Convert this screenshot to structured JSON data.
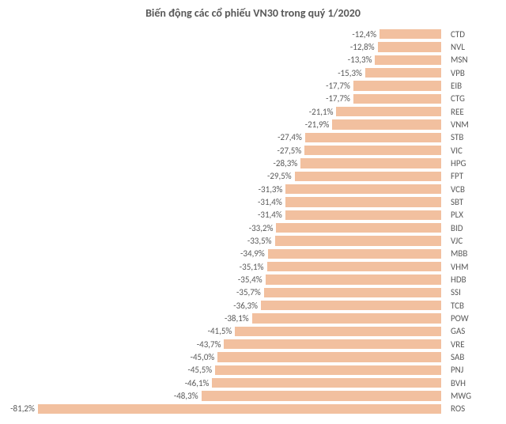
{
  "chart": {
    "type": "bar-horizontal",
    "title": "Biến động các cổ phiếu VN30 trong quý 1/2020",
    "title_fontsize": 14,
    "title_color": "#595959",
    "background_color": "#ffffff",
    "bar_color": "#f2c09f",
    "value_label_color": "#595959",
    "ticker_label_color": "#595959",
    "label_fontsize": 11,
    "xlim_min": -85,
    "xlim_max": 0,
    "bar_gap_ratio": 0.25,
    "rows": [
      {
        "ticker": "CTD",
        "value": -12.4,
        "label": "-12,4%"
      },
      {
        "ticker": "NVL",
        "value": -12.8,
        "label": "-12,8%"
      },
      {
        "ticker": "MSN",
        "value": -13.3,
        "label": "-13,3%"
      },
      {
        "ticker": "VPB",
        "value": -15.3,
        "label": "-15,3%"
      },
      {
        "ticker": "EIB",
        "value": -17.7,
        "label": "-17,7%"
      },
      {
        "ticker": "CTG",
        "value": -17.7,
        "label": "-17,7%"
      },
      {
        "ticker": "REE",
        "value": -21.1,
        "label": "-21,1%"
      },
      {
        "ticker": "VNM",
        "value": -21.9,
        "label": "-21,9%"
      },
      {
        "ticker": "STB",
        "value": -27.4,
        "label": "-27,4%"
      },
      {
        "ticker": "VIC",
        "value": -27.5,
        "label": "-27,5%"
      },
      {
        "ticker": "HPG",
        "value": -28.3,
        "label": "-28,3%"
      },
      {
        "ticker": "FPT",
        "value": -29.5,
        "label": "-29,5%"
      },
      {
        "ticker": "VCB",
        "value": -31.3,
        "label": "-31,3%"
      },
      {
        "ticker": "SBT",
        "value": -31.4,
        "label": "-31,4%"
      },
      {
        "ticker": "PLX",
        "value": -31.4,
        "label": "-31,4%"
      },
      {
        "ticker": "BID",
        "value": -33.2,
        "label": "-33,2%"
      },
      {
        "ticker": "VJC",
        "value": -33.5,
        "label": "-33,5%"
      },
      {
        "ticker": "MBB",
        "value": -34.9,
        "label": "-34,9%"
      },
      {
        "ticker": "VHM",
        "value": -35.1,
        "label": "-35,1%"
      },
      {
        "ticker": "HDB",
        "value": -35.4,
        "label": "-35,4%"
      },
      {
        "ticker": "SSI",
        "value": -35.7,
        "label": "-35,7%"
      },
      {
        "ticker": "TCB",
        "value": -36.3,
        "label": "-36,3%"
      },
      {
        "ticker": "POW",
        "value": -38.1,
        "label": "-38,1%"
      },
      {
        "ticker": "GAS",
        "value": -41.5,
        "label": "-41,5%"
      },
      {
        "ticker": "VRE",
        "value": -43.7,
        "label": "-43,7%"
      },
      {
        "ticker": "SAB",
        "value": -45.0,
        "label": "-45,0%"
      },
      {
        "ticker": "PNJ",
        "value": -45.5,
        "label": "-45,5%"
      },
      {
        "ticker": "BVH",
        "value": -46.1,
        "label": "-46,1%"
      },
      {
        "ticker": "MWG",
        "value": -48.3,
        "label": "-48,3%"
      },
      {
        "ticker": "ROS",
        "value": -81.2,
        "label": "-81,2%"
      }
    ]
  }
}
